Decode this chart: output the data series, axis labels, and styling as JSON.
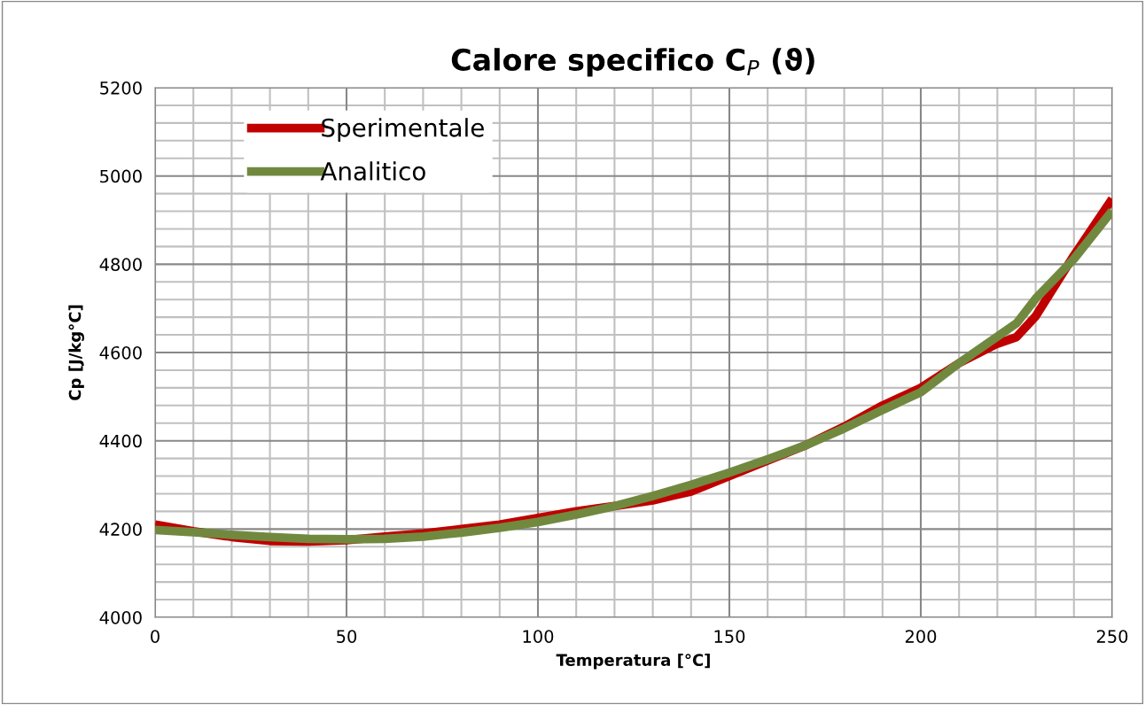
{
  "chart_data": {
    "type": "line",
    "title": "Calore specifico C$_{P}$ (ϑ)",
    "xlabel": "Temperatura [°C]",
    "ylabel": "Cp [J/kg°C]",
    "x": [
      0,
      10,
      20,
      30,
      40,
      50,
      60,
      70,
      80,
      90,
      100,
      110,
      120,
      130,
      140,
      150,
      160,
      170,
      180,
      190,
      200,
      210,
      220,
      225,
      230,
      240,
      250
    ],
    "series": [
      {
        "name": "Sperimentale",
        "color": "#c00000",
        "values": [
          4210,
          4195,
          4182,
          4173,
          4172,
          4175,
          4183,
          4190,
          4200,
          4210,
          4225,
          4240,
          4252,
          4265,
          4285,
          4320,
          4355,
          4390,
          4432,
          4480,
          4520,
          4576,
          4620,
          4635,
          4682,
          4820,
          4948
        ]
      },
      {
        "name": "Analitico",
        "color": "#71893f",
        "values": [
          4198,
          4193,
          4187,
          4182,
          4178,
          4177,
          4178,
          4183,
          4192,
          4203,
          4216,
          4233,
          4252,
          4275,
          4300,
          4328,
          4358,
          4390,
          4428,
          4470,
          4510,
          4576,
          4636,
          4666,
          4722,
          4812,
          4921
        ]
      }
    ],
    "xlim": [
      0,
      250
    ],
    "xticks": [
      0,
      50,
      100,
      150,
      200,
      250
    ],
    "ylim": [
      4000,
      5200
    ],
    "yticks": [
      4000,
      4200,
      4400,
      4600,
      4800,
      5000,
      5200
    ],
    "grid": true,
    "legend": "top left",
    "marker": "none",
    "line_style": "solid"
  }
}
